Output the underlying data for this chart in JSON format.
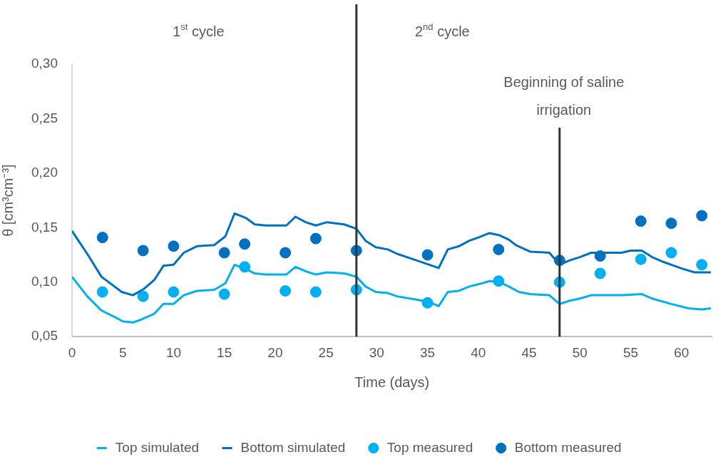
{
  "chart_data": {
    "type": "line",
    "xlabel": "Time (days)",
    "ylabel": "θ [cm³cm⁻³]",
    "xlim": [
      0,
      63
    ],
    "xticks": [
      0,
      5,
      10,
      15,
      20,
      25,
      30,
      35,
      40,
      45,
      50,
      55,
      60
    ],
    "ylim": [
      0.05,
      0.3
    ],
    "yticks": [
      {
        "value": 0.05,
        "label": "0,05"
      },
      {
        "value": 0.1,
        "label": "0,10"
      },
      {
        "value": 0.15,
        "label": "0,15"
      },
      {
        "value": 0.2,
        "label": "0,20"
      },
      {
        "value": 0.25,
        "label": "0,25"
      },
      {
        "value": 0.3,
        "label": "0,30"
      }
    ],
    "grid": false,
    "legend": "bottom",
    "series": [
      {
        "name": "Top simulated",
        "color": "#00b0f0",
        "marker": "none",
        "x": [
          0,
          1.5,
          2.9,
          4.2,
          5,
          6,
          6.9,
          8.1,
          9,
          10,
          11,
          12.3,
          14,
          15.1,
          16,
          17.1,
          18,
          19.1,
          21.1,
          22,
          23,
          24,
          25.1,
          26.8,
          28,
          28.9,
          29.9,
          31.1,
          32,
          33.9,
          35.1,
          36.1,
          37,
          38.1,
          39.1,
          40,
          41.1,
          42.1,
          43,
          44,
          45.1,
          47,
          48,
          49,
          50,
          51.1,
          54.1,
          56.1,
          57.1,
          59,
          60.7,
          62,
          62.9
        ],
        "values": [
          0.105,
          0.087,
          0.074,
          0.068,
          0.064,
          0.063,
          0.066,
          0.071,
          0.08,
          0.08,
          0.088,
          0.092,
          0.093,
          0.099,
          0.116,
          0.112,
          0.108,
          0.107,
          0.107,
          0.114,
          0.11,
          0.107,
          0.109,
          0.108,
          0.105,
          0.096,
          0.091,
          0.09,
          0.087,
          0.084,
          0.082,
          0.078,
          0.091,
          0.092,
          0.096,
          0.098,
          0.101,
          0.1,
          0.096,
          0.091,
          0.089,
          0.088,
          0.08,
          0.083,
          0.085,
          0.088,
          0.088,
          0.089,
          0.085,
          0.08,
          0.076,
          0.075,
          0.076
        ]
      },
      {
        "name": "Bottom simulated",
        "color": "#0070c0",
        "marker": "none",
        "x": [
          0,
          1.5,
          2.9,
          4.9,
          6,
          7.1,
          8.1,
          9,
          10,
          11,
          12.3,
          14,
          15.1,
          16,
          17.1,
          18,
          19.1,
          21.1,
          22,
          23,
          24,
          25.1,
          26.8,
          28,
          28.9,
          29.9,
          31.1,
          32,
          33.9,
          36.1,
          37,
          38.1,
          39.1,
          40,
          41.1,
          42.1,
          43,
          43.7,
          45.1,
          47,
          48,
          49,
          50,
          51.1,
          54.1,
          55,
          56.1,
          57.1,
          58.1,
          59,
          60.2,
          61.3,
          62.9
        ],
        "values": [
          0.147,
          0.126,
          0.105,
          0.091,
          0.088,
          0.094,
          0.102,
          0.115,
          0.116,
          0.127,
          0.133,
          0.134,
          0.142,
          0.163,
          0.159,
          0.153,
          0.152,
          0.152,
          0.16,
          0.155,
          0.152,
          0.155,
          0.153,
          0.149,
          0.138,
          0.132,
          0.13,
          0.126,
          0.12,
          0.113,
          0.13,
          0.133,
          0.138,
          0.141,
          0.145,
          0.143,
          0.139,
          0.134,
          0.128,
          0.127,
          0.116,
          0.12,
          0.123,
          0.127,
          0.127,
          0.129,
          0.129,
          0.123,
          0.119,
          0.116,
          0.112,
          0.109,
          0.109
        ]
      },
      {
        "name": "Top measured",
        "type": "scatter",
        "color": "#00b0f0",
        "marker": "circle",
        "x": [
          3,
          7,
          10,
          15,
          17,
          21,
          24,
          28,
          35,
          42,
          48,
          52,
          56,
          59,
          62
        ],
        "values": [
          0.091,
          0.087,
          0.091,
          0.089,
          0.114,
          0.092,
          0.091,
          0.093,
          0.081,
          0.101,
          0.1,
          0.108,
          0.121,
          0.127,
          0.116
        ]
      },
      {
        "name": "Bottom measured",
        "type": "scatter",
        "color": "#0070c0",
        "marker": "circle",
        "x": [
          3,
          7,
          10,
          15,
          17,
          21,
          24,
          28,
          35,
          42,
          48,
          52,
          56,
          59,
          62
        ],
        "values": [
          0.141,
          0.129,
          0.133,
          0.127,
          0.135,
          0.127,
          0.14,
          0.129,
          0.125,
          0.13,
          0.12,
          0.124,
          0.156,
          0.154,
          0.161
        ]
      }
    ],
    "ref_lines": [
      {
        "axis": "x",
        "value": 28,
        "color": "#333333"
      },
      {
        "axis": "x",
        "value": 48,
        "label": "Beginning of saline irrigation",
        "color": "#333333"
      }
    ],
    "annotations": [
      "1$^{st}$ cycle",
      "2$^{nd}$ cycle"
    ]
  }
}
